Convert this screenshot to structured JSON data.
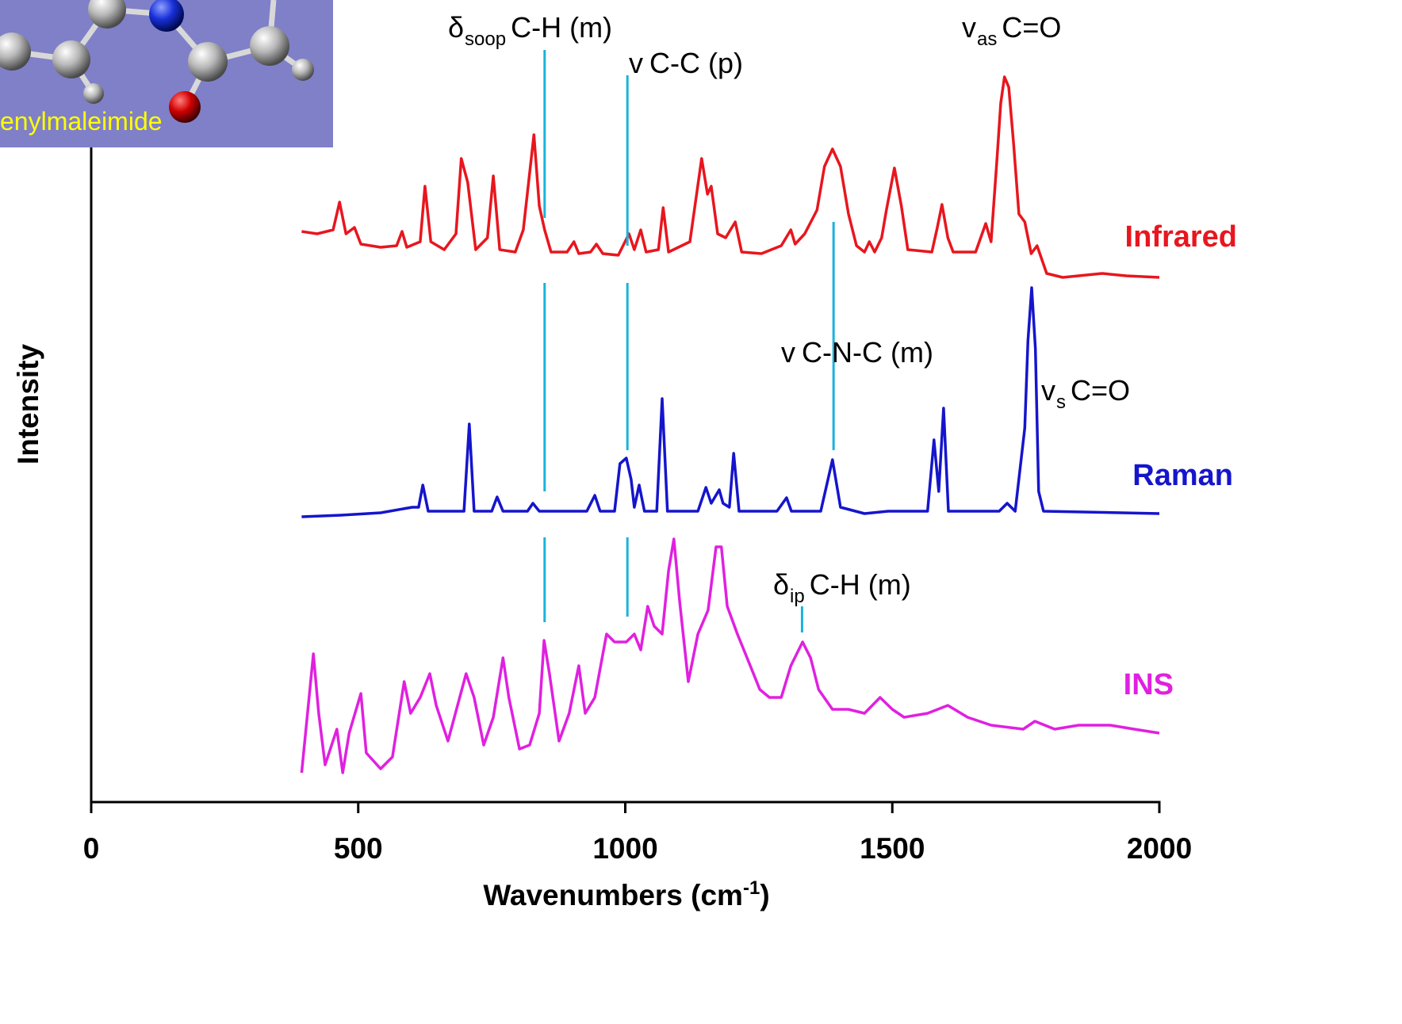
{
  "chart_data": {
    "type": "line",
    "inset_label": "enylmaleimide",
    "xlabel": {
      "text": "Wavenumbers (cm",
      "sup": "-1",
      "close": ")"
    },
    "ylabel": "Intensity",
    "xlim": [
      0,
      2000
    ],
    "xticks": [
      0,
      500,
      1000,
      1500,
      2000
    ],
    "ylim": [
      0,
      100
    ],
    "annotation_color": "#1ab3dc",
    "annotations": [
      {
        "symbol": "δ",
        "sub": "soop",
        "text": "C-H (m)",
        "x": 849,
        "segments": [
          [
            94.9,
            73.7
          ],
          [
            65.5,
            39.2
          ],
          [
            33.4,
            22.7
          ]
        ]
      },
      {
        "symbol": "v",
        "text": "C-C (p)",
        "x": 1004,
        "segments": [
          [
            91.7,
            70.2
          ],
          [
            65.5,
            44.4
          ],
          [
            33.4,
            23.4
          ]
        ]
      },
      {
        "symbol": "v",
        "sub": "as",
        "text": "C=O"
      },
      {
        "symbol": "v",
        "text": "C-N-C (m)",
        "x": 1390,
        "segments": [
          [
            73.2,
            44.4
          ]
        ]
      },
      {
        "symbol": "v",
        "sub": "s",
        "text": "C=O"
      },
      {
        "symbol": "δ",
        "sub": "ip",
        "text": "C-H (m)",
        "x": 1331,
        "segments": [
          [
            24.7,
            21.4
          ]
        ]
      }
    ],
    "series": [
      {
        "name": "Infrared",
        "color": "#e8161e",
        "x": [
          394,
          423,
          453,
          465,
          477,
          493,
          505,
          542,
          572,
          582,
          591,
          616,
          625,
          636,
          661,
          683,
          693,
          705,
          720,
          742,
          753,
          765,
          794,
          809,
          829,
          839,
          849,
          861,
          891,
          904,
          913,
          935,
          946,
          958,
          987,
          1007,
          1017,
          1029,
          1039,
          1062,
          1071,
          1081,
          1121,
          1143,
          1154,
          1161,
          1173,
          1188,
          1206,
          1218,
          1255,
          1292,
          1310,
          1318,
          1336,
          1359,
          1373,
          1388,
          1403,
          1418,
          1433,
          1448,
          1457,
          1467,
          1480,
          1489,
          1504,
          1517,
          1529,
          1574,
          1584,
          1593,
          1604,
          1614,
          1656,
          1675,
          1685,
          1696,
          1703,
          1710,
          1718,
          1727,
          1737,
          1748,
          1760,
          1771,
          1789,
          1819,
          1893,
          1938,
          2000
        ],
        "values": [
          72.0,
          71.7,
          72.2,
          75.7,
          71.7,
          72.5,
          70.4,
          70.0,
          70.2,
          72.0,
          70.0,
          70.7,
          77.7,
          70.7,
          69.7,
          71.7,
          81.2,
          78.2,
          69.7,
          71.2,
          79.0,
          69.7,
          69.4,
          72.2,
          84.2,
          75.2,
          72.2,
          69.4,
          69.4,
          70.7,
          69.2,
          69.4,
          70.4,
          69.2,
          69.0,
          71.7,
          69.7,
          72.2,
          69.4,
          69.7,
          75.0,
          69.4,
          70.7,
          81.2,
          76.7,
          77.7,
          71.7,
          71.2,
          73.2,
          69.4,
          69.2,
          70.2,
          72.2,
          70.4,
          71.7,
          74.7,
          80.2,
          82.4,
          80.2,
          74.2,
          70.2,
          69.4,
          70.7,
          69.4,
          71.2,
          74.7,
          80.0,
          75.2,
          69.7,
          69.4,
          72.4,
          75.4,
          71.2,
          69.4,
          69.4,
          73.0,
          70.7,
          81.2,
          88.2,
          91.5,
          90.2,
          83.2,
          74.2,
          73.2,
          69.2,
          70.2,
          66.7,
          66.2,
          66.7,
          66.4,
          66.2
        ]
      },
      {
        "name": "Raman",
        "color": "#1515cc",
        "x": [
          394,
          468,
          542,
          601,
          613,
          621,
          631,
          698,
          708,
          717,
          750,
          760,
          771,
          817,
          827,
          839,
          928,
          943,
          953,
          980,
          990,
          1002,
          1011,
          1017,
          1026,
          1036,
          1059,
          1069,
          1079,
          1136,
          1151,
          1161,
          1176,
          1183,
          1195,
          1203,
          1213,
          1284,
          1302,
          1311,
          1366,
          1388,
          1403,
          1448,
          1492,
          1566,
          1578,
          1587,
          1596,
          1605,
          1700,
          1715,
          1730,
          1748,
          1754,
          1761,
          1768,
          1774,
          1783,
          2000
        ],
        "values": [
          36.0,
          36.2,
          36.5,
          37.2,
          37.2,
          40.0,
          36.7,
          36.7,
          47.7,
          36.7,
          36.7,
          38.5,
          36.7,
          36.7,
          37.7,
          36.7,
          36.7,
          38.7,
          36.7,
          36.7,
          42.7,
          43.4,
          40.7,
          37.2,
          40.0,
          36.7,
          36.7,
          50.9,
          36.7,
          36.7,
          39.7,
          37.7,
          39.4,
          37.7,
          37.2,
          44.0,
          36.7,
          36.7,
          38.4,
          36.7,
          36.7,
          43.2,
          37.2,
          36.4,
          36.7,
          36.7,
          45.7,
          39.2,
          49.7,
          36.7,
          36.7,
          37.7,
          36.7,
          47.2,
          58.2,
          64.9,
          57.2,
          39.2,
          36.7,
          36.4
        ]
      },
      {
        "name": "INS",
        "color": "#e020e0",
        "x": [
          394,
          405,
          416,
          426,
          438,
          460,
          471,
          483,
          505,
          515,
          542,
          564,
          586,
          598,
          616,
          634,
          646,
          668,
          690,
          702,
          717,
          735,
          753,
          771,
          782,
          802,
          821,
          839,
          848,
          858,
          876,
          895,
          913,
          925,
          943,
          965,
          980,
          1002,
          1017,
          1029,
          1042,
          1054,
          1069,
          1081,
          1091,
          1102,
          1118,
          1136,
          1155,
          1170,
          1180,
          1191,
          1210,
          1228,
          1252,
          1270,
          1292,
          1310,
          1332,
          1347,
          1362,
          1388,
          1418,
          1448,
          1477,
          1500,
          1522,
          1566,
          1604,
          1641,
          1685,
          1745,
          1767,
          1804,
          1849,
          1908,
          1953,
          2000
        ],
        "values": [
          3.7,
          11.2,
          18.7,
          11.2,
          4.7,
          9.2,
          3.7,
          8.7,
          13.7,
          6.2,
          4.2,
          5.7,
          15.2,
          11.2,
          13.2,
          16.2,
          12.2,
          7.7,
          13.2,
          16.2,
          13.2,
          7.2,
          10.7,
          18.2,
          13.2,
          6.7,
          7.2,
          11.2,
          20.4,
          16.2,
          7.7,
          11.2,
          17.2,
          11.2,
          13.2,
          21.2,
          20.2,
          20.2,
          21.2,
          19.2,
          24.7,
          22.2,
          21.2,
          29.2,
          33.2,
          25.2,
          15.2,
          21.2,
          24.2,
          32.2,
          32.2,
          24.7,
          21.2,
          18.2,
          14.2,
          13.2,
          13.2,
          17.2,
          20.2,
          18.2,
          14.2,
          11.7,
          11.7,
          11.2,
          13.2,
          11.7,
          10.7,
          11.2,
          12.2,
          10.7,
          9.7,
          9.2,
          10.2,
          9.2,
          9.7,
          9.7,
          9.2,
          8.7
        ]
      }
    ]
  }
}
